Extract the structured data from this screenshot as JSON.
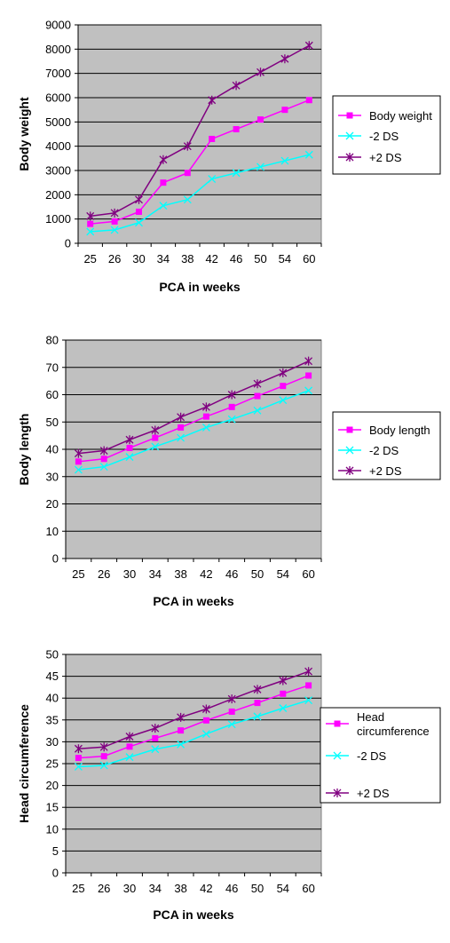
{
  "colors": {
    "plot_bg": "#c0c0c0",
    "grid": "#000000",
    "center": "#ff00ff",
    "minus": "#00ffff",
    "plus": "#800080"
  },
  "chart_data": [
    {
      "type": "line",
      "categories": [
        "25",
        "26",
        "30",
        "34",
        "38",
        "42",
        "46",
        "50",
        "54",
        "60"
      ],
      "xlabel": "PCA in weeks",
      "ylabel": "Body weight",
      "ylim": [
        0,
        9000
      ],
      "yticks": [
        0,
        1000,
        2000,
        3000,
        4000,
        5000,
        6000,
        7000,
        8000,
        9000
      ],
      "grid": true,
      "legend_position": "right",
      "series": [
        {
          "name": "Body weight",
          "marker": "square",
          "values": [
            800,
            900,
            1300,
            2500,
            2900,
            4300,
            4700,
            5100,
            5500,
            5900
          ]
        },
        {
          "name": "-2 DS",
          "marker": "x",
          "values": [
            480,
            550,
            850,
            1550,
            1800,
            2650,
            2900,
            3150,
            3400,
            3650
          ]
        },
        {
          "name": "+2 DS",
          "marker": "asterisk",
          "values": [
            1120,
            1250,
            1800,
            3450,
            4000,
            5900,
            6500,
            7050,
            7600,
            8150
          ]
        }
      ]
    },
    {
      "type": "line",
      "categories": [
        "25",
        "26",
        "30",
        "34",
        "38",
        "42",
        "46",
        "50",
        "54",
        "60"
      ],
      "xlabel": "PCA in weeks",
      "ylabel": "Body length",
      "ylim": [
        0,
        80
      ],
      "yticks": [
        0,
        10,
        20,
        30,
        40,
        50,
        60,
        70,
        80
      ],
      "grid": true,
      "legend_position": "right",
      "series": [
        {
          "name": "Body length",
          "marker": "square",
          "values": [
            35.5,
            36.5,
            40.5,
            44.2,
            48,
            52,
            55.5,
            59.5,
            63.2,
            67
          ]
        },
        {
          "name": "-2 DS",
          "marker": "x",
          "values": [
            32.5,
            33.6,
            37.2,
            41,
            44.2,
            48,
            51,
            54.2,
            58,
            61.5
          ]
        },
        {
          "name": "+2 DS",
          "marker": "asterisk",
          "values": [
            38.5,
            39.5,
            43.5,
            47,
            51.8,
            55.5,
            60,
            64,
            68,
            72.3
          ]
        }
      ]
    },
    {
      "type": "line",
      "categories": [
        "25",
        "26",
        "30",
        "34",
        "38",
        "42",
        "46",
        "50",
        "54",
        "60"
      ],
      "xlabel": "PCA in weeks",
      "ylabel": "Head circumference",
      "ylim": [
        0,
        50
      ],
      "yticks": [
        0,
        5,
        10,
        15,
        20,
        25,
        30,
        35,
        40,
        45,
        50
      ],
      "grid": true,
      "legend_position": "right",
      "series": [
        {
          "name": "Head circumference",
          "marker": "square",
          "values": [
            26.3,
            26.7,
            28.9,
            30.8,
            32.6,
            34.9,
            36.9,
            38.9,
            41,
            42.9
          ]
        },
        {
          "name": "-2 DS",
          "marker": "x",
          "values": [
            24.3,
            24.6,
            26.5,
            28.3,
            29.4,
            31.8,
            34,
            35.8,
            37.7,
            39.5
          ]
        },
        {
          "name": "+2 DS",
          "marker": "asterisk",
          "values": [
            28.4,
            28.8,
            31.2,
            33.1,
            35.6,
            37.5,
            39.8,
            42,
            44,
            46.1
          ]
        }
      ]
    }
  ]
}
